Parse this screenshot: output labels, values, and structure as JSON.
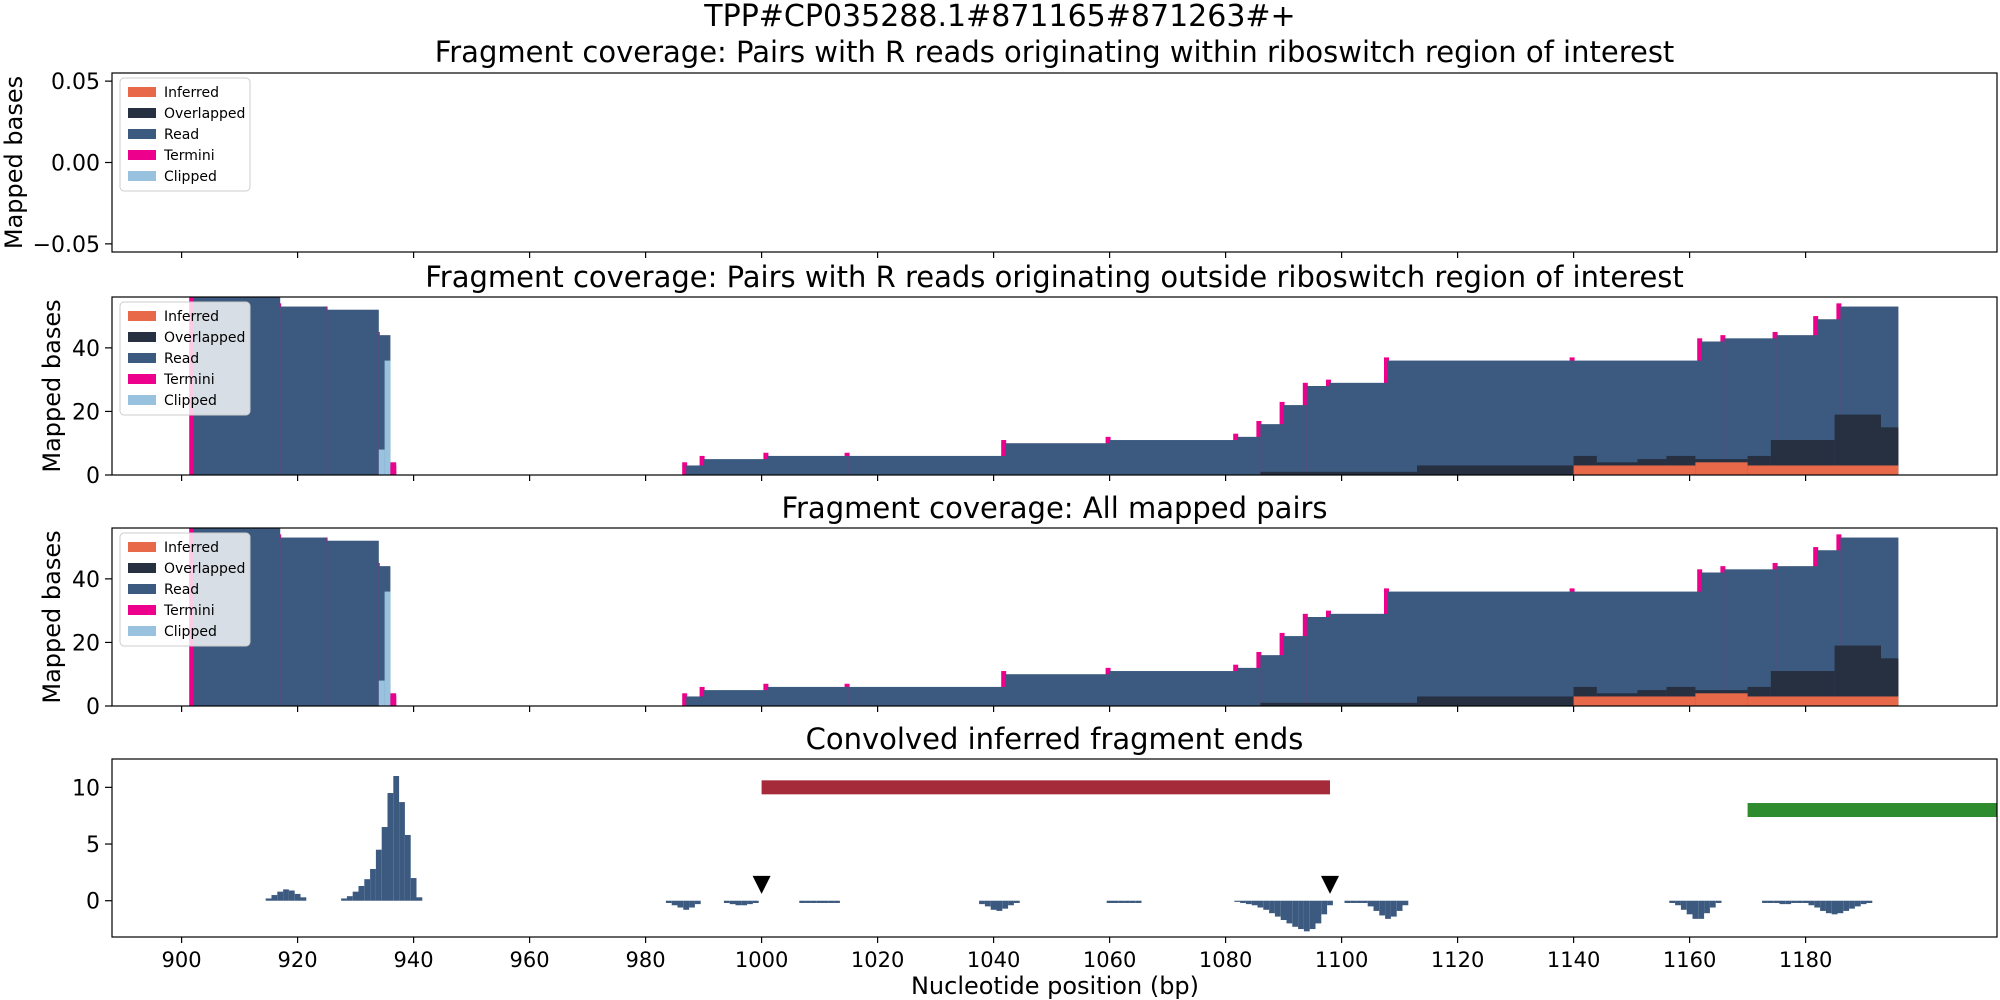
{
  "suptitle": "TPP#CP035288.1#871165#871263#+",
  "xlabel": "Nucleotide position (bp)",
  "ylabel": "Mapped bases",
  "xlim": [
    888,
    1213
  ],
  "xticks": [
    900,
    920,
    940,
    960,
    980,
    1000,
    1020,
    1040,
    1060,
    1080,
    1100,
    1120,
    1140,
    1160,
    1180
  ],
  "colors": {
    "Inferred": "#e8694a",
    "Overlapped": "#263041",
    "Read": "#3c5a7f",
    "Termini": "#ec008c",
    "Clipped": "#99c2de",
    "riboswitch_bar": "#a52a3a",
    "cds_bar": "#2e8b2e",
    "marker": "#000000"
  },
  "legend_entries": [
    "Inferred",
    "Overlapped",
    "Read",
    "Termini",
    "Clipped"
  ],
  "chart_data": [
    {
      "type": "area",
      "title": "Fragment coverage: Pairs with R reads originating within riboswitch region of interest",
      "ylabel": "Mapped bases",
      "ylim": [
        -0.055,
        0.055
      ],
      "yticks": [
        -0.05,
        0.0,
        0.05
      ],
      "ytick_labels": [
        "−0.05",
        "0.00",
        "0.05"
      ],
      "legend": "upper-left",
      "series": []
    },
    {
      "type": "area",
      "title": "Fragment coverage: Pairs with R reads originating outside riboswitch region of interest",
      "ylabel": "Mapped bases",
      "ylim": [
        0,
        56
      ],
      "yticks": [
        0,
        20,
        40
      ],
      "ytick_labels": [
        "0",
        "20",
        "40"
      ],
      "legend": "upper-left",
      "inferred": [
        [
          1140,
          1161,
          3
        ],
        [
          1161,
          1170,
          4
        ],
        [
          1170,
          1196,
          3
        ]
      ],
      "overlapped": [
        [
          1086,
          1113,
          1
        ],
        [
          1113,
          1140,
          3
        ],
        [
          1140,
          1144,
          6
        ],
        [
          1144,
          1151,
          4
        ],
        [
          1151,
          1156,
          5
        ],
        [
          1156,
          1161,
          6
        ],
        [
          1161,
          1170,
          5
        ],
        [
          1170,
          1174,
          6
        ],
        [
          1174,
          1185,
          11
        ],
        [
          1185,
          1193,
          19
        ],
        [
          1193,
          1196,
          15
        ]
      ],
      "read": [
        [
          902,
          917,
          56
        ],
        [
          917,
          925,
          53
        ],
        [
          925,
          934,
          52
        ],
        [
          934,
          936,
          44
        ],
        [
          936,
          937,
          3
        ],
        [
          987,
          990,
          3
        ],
        [
          990,
          1001,
          5
        ],
        [
          1001,
          1015,
          6
        ],
        [
          1015,
          1042,
          6
        ],
        [
          1042,
          1060,
          10
        ],
        [
          1060,
          1082,
          11
        ],
        [
          1082,
          1086,
          12
        ],
        [
          1086,
          1090,
          16
        ],
        [
          1090,
          1094,
          22
        ],
        [
          1094,
          1098,
          28
        ],
        [
          1098,
          1108,
          29
        ],
        [
          1108,
          1140,
          36
        ],
        [
          1140,
          1162,
          36
        ],
        [
          1162,
          1166,
          42
        ],
        [
          1166,
          1175,
          43
        ],
        [
          1175,
          1182,
          44
        ],
        [
          1182,
          1186,
          49
        ],
        [
          1186,
          1196,
          53
        ]
      ],
      "termini": [
        [
          936,
          937,
          3
        ],
        [
          988,
          990,
          1
        ],
        [
          1001,
          1015,
          1
        ],
        [
          1043,
          1046,
          1
        ]
      ],
      "clipped": [
        [
          935,
          936,
          36
        ],
        [
          934,
          935,
          8
        ]
      ]
    },
    {
      "type": "area",
      "title": "Fragment coverage: All mapped pairs",
      "ylabel": "Mapped bases",
      "ylim": [
        0,
        56
      ],
      "yticks": [
        0,
        20,
        40
      ],
      "ytick_labels": [
        "0",
        "20",
        "40"
      ],
      "legend": "upper-left",
      "same_as_previous": true
    },
    {
      "type": "bar",
      "title": "Convolved inferred fragment ends",
      "ylabel": "",
      "ylim": [
        -3.2,
        12.5
      ],
      "yticks": [
        0,
        5,
        10
      ],
      "ytick_labels": [
        "0",
        "5",
        "10"
      ],
      "bars_up": [
        [
          915,
          0.2
        ],
        [
          916,
          0.5
        ],
        [
          917,
          0.8
        ],
        [
          918,
          1.0
        ],
        [
          919,
          0.9
        ],
        [
          920,
          0.6
        ],
        [
          921,
          0.3
        ],
        [
          928,
          0.2
        ],
        [
          929,
          0.4
        ],
        [
          930,
          0.8
        ],
        [
          931,
          1.3
        ],
        [
          932,
          1.9
        ],
        [
          933,
          2.8
        ],
        [
          934,
          4.5
        ],
        [
          935,
          6.5
        ],
        [
          936,
          9.5
        ],
        [
          937,
          11.0
        ],
        [
          938,
          8.7
        ],
        [
          939,
          5.8
        ],
        [
          940,
          2.0
        ],
        [
          941,
          0.3
        ]
      ],
      "bars_down": [
        [
          984,
          0.2
        ],
        [
          985,
          0.4
        ],
        [
          986,
          0.6
        ],
        [
          987,
          0.8
        ],
        [
          988,
          0.6
        ],
        [
          989,
          0.3
        ],
        [
          994,
          0.2
        ],
        [
          995,
          0.3
        ],
        [
          996,
          0.4
        ],
        [
          997,
          0.4
        ],
        [
          998,
          0.3
        ],
        [
          999,
          0.2
        ],
        [
          1007,
          0.2
        ],
        [
          1008,
          0.2
        ],
        [
          1009,
          0.2
        ],
        [
          1010,
          0.2
        ],
        [
          1011,
          0.2
        ],
        [
          1012,
          0.2
        ],
        [
          1013,
          0.2
        ],
        [
          1038,
          0.3
        ],
        [
          1039,
          0.5
        ],
        [
          1040,
          0.8
        ],
        [
          1041,
          0.9
        ],
        [
          1042,
          0.7
        ],
        [
          1043,
          0.4
        ],
        [
          1044,
          0.2
        ],
        [
          1060,
          0.2
        ],
        [
          1061,
          0.2
        ],
        [
          1062,
          0.2
        ],
        [
          1063,
          0.2
        ],
        [
          1064,
          0.2
        ],
        [
          1065,
          0.2
        ],
        [
          1082,
          0.1
        ],
        [
          1083,
          0.2
        ],
        [
          1084,
          0.3
        ],
        [
          1085,
          0.4
        ],
        [
          1086,
          0.6
        ],
        [
          1087,
          0.8
        ],
        [
          1088,
          1.1
        ],
        [
          1089,
          1.4
        ],
        [
          1090,
          1.7
        ],
        [
          1091,
          2.0
        ],
        [
          1092,
          2.3
        ],
        [
          1093,
          2.5
        ],
        [
          1094,
          2.7
        ],
        [
          1095,
          2.5
        ],
        [
          1096,
          2.0
        ],
        [
          1097,
          1.2
        ],
        [
          1098,
          0.4
        ],
        [
          1101,
          0.2
        ],
        [
          1102,
          0.2
        ],
        [
          1103,
          0.2
        ],
        [
          1104,
          0.2
        ],
        [
          1105,
          0.5
        ],
        [
          1106,
          0.9
        ],
        [
          1107,
          1.3
        ],
        [
          1108,
          1.6
        ],
        [
          1109,
          1.4
        ],
        [
          1110,
          0.9
        ],
        [
          1111,
          0.4
        ],
        [
          1157,
          0.2
        ],
        [
          1158,
          0.4
        ],
        [
          1159,
          0.8
        ],
        [
          1160,
          1.2
        ],
        [
          1161,
          1.6
        ],
        [
          1162,
          1.6
        ],
        [
          1163,
          1.1
        ],
        [
          1164,
          0.6
        ],
        [
          1165,
          0.2
        ],
        [
          1173,
          0.2
        ],
        [
          1174,
          0.2
        ],
        [
          1175,
          0.2
        ],
        [
          1176,
          0.3
        ],
        [
          1177,
          0.3
        ],
        [
          1178,
          0.2
        ],
        [
          1179,
          0.2
        ],
        [
          1180,
          0.2
        ],
        [
          1181,
          0.4
        ],
        [
          1182,
          0.6
        ],
        [
          1183,
          0.9
        ],
        [
          1184,
          1.1
        ],
        [
          1185,
          1.2
        ],
        [
          1186,
          1.1
        ],
        [
          1187,
          0.9
        ],
        [
          1188,
          0.7
        ],
        [
          1189,
          0.5
        ],
        [
          1190,
          0.3
        ],
        [
          1191,
          0.2
        ]
      ],
      "riboswitch_range": [
        1000,
        1098
      ],
      "riboswitch_y": 10,
      "cds_range": [
        1170,
        1213
      ],
      "cds_y": 8,
      "markers_x": [
        1000,
        1098
      ],
      "marker_y": 1.4
    }
  ]
}
